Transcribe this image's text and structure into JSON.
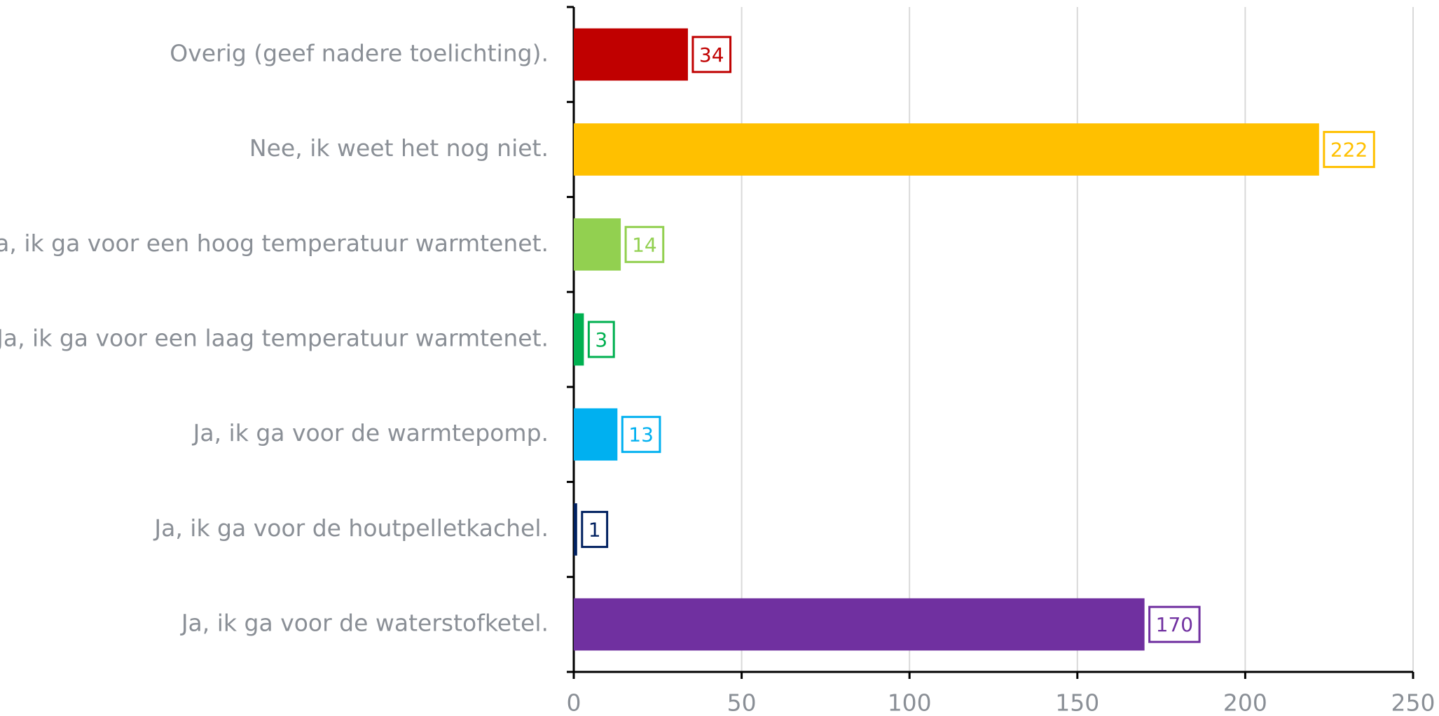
{
  "chart_data": {
    "type": "hbar",
    "categories": [
      "Overig (geef nadere toelichting).",
      "Nee, ik weet het nog niet.",
      "Ja, ik ga voor een hoog temperatuur warmtenet.",
      "Ja, ik ga voor een laag temperatuur warmtenet.",
      "Ja, ik ga voor de warmtepomp.",
      "Ja, ik ga voor de houtpelletkachel.",
      "Ja, ik ga voor de waterstofketel."
    ],
    "values": [
      34,
      222,
      14,
      3,
      13,
      1,
      170
    ],
    "colors": [
      "#c00000",
      "#ffc000",
      "#92d050",
      "#00b050",
      "#00b0f0",
      "#002060",
      "#7030a0"
    ],
    "xlim": [
      0,
      250
    ],
    "xticks": [
      0,
      50,
      100,
      150,
      200,
      250
    ],
    "grid": true
  }
}
